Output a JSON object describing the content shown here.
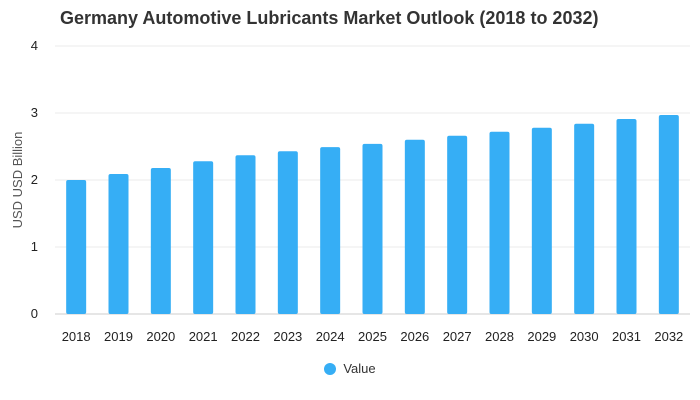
{
  "chart_data": {
    "type": "bar",
    "title": "Germany Automotive Lubricants Market Outlook (2018 to 2032)",
    "xlabel": "",
    "ylabel": "USD USD Billion",
    "ylim": [
      0,
      4
    ],
    "yticks": [
      0,
      1,
      2,
      3,
      4
    ],
    "categories": [
      "2018",
      "2019",
      "2020",
      "2021",
      "2022",
      "2023",
      "2024",
      "2025",
      "2026",
      "2027",
      "2028",
      "2029",
      "2030",
      "2031",
      "2032"
    ],
    "series": [
      {
        "name": "Value",
        "color": "#36aef5",
        "values": [
          2.0,
          2.09,
          2.18,
          2.28,
          2.37,
          2.43,
          2.49,
          2.54,
          2.6,
          2.66,
          2.72,
          2.78,
          2.84,
          2.91,
          2.97
        ]
      }
    ],
    "grid": true,
    "legend_position": "bottom"
  }
}
